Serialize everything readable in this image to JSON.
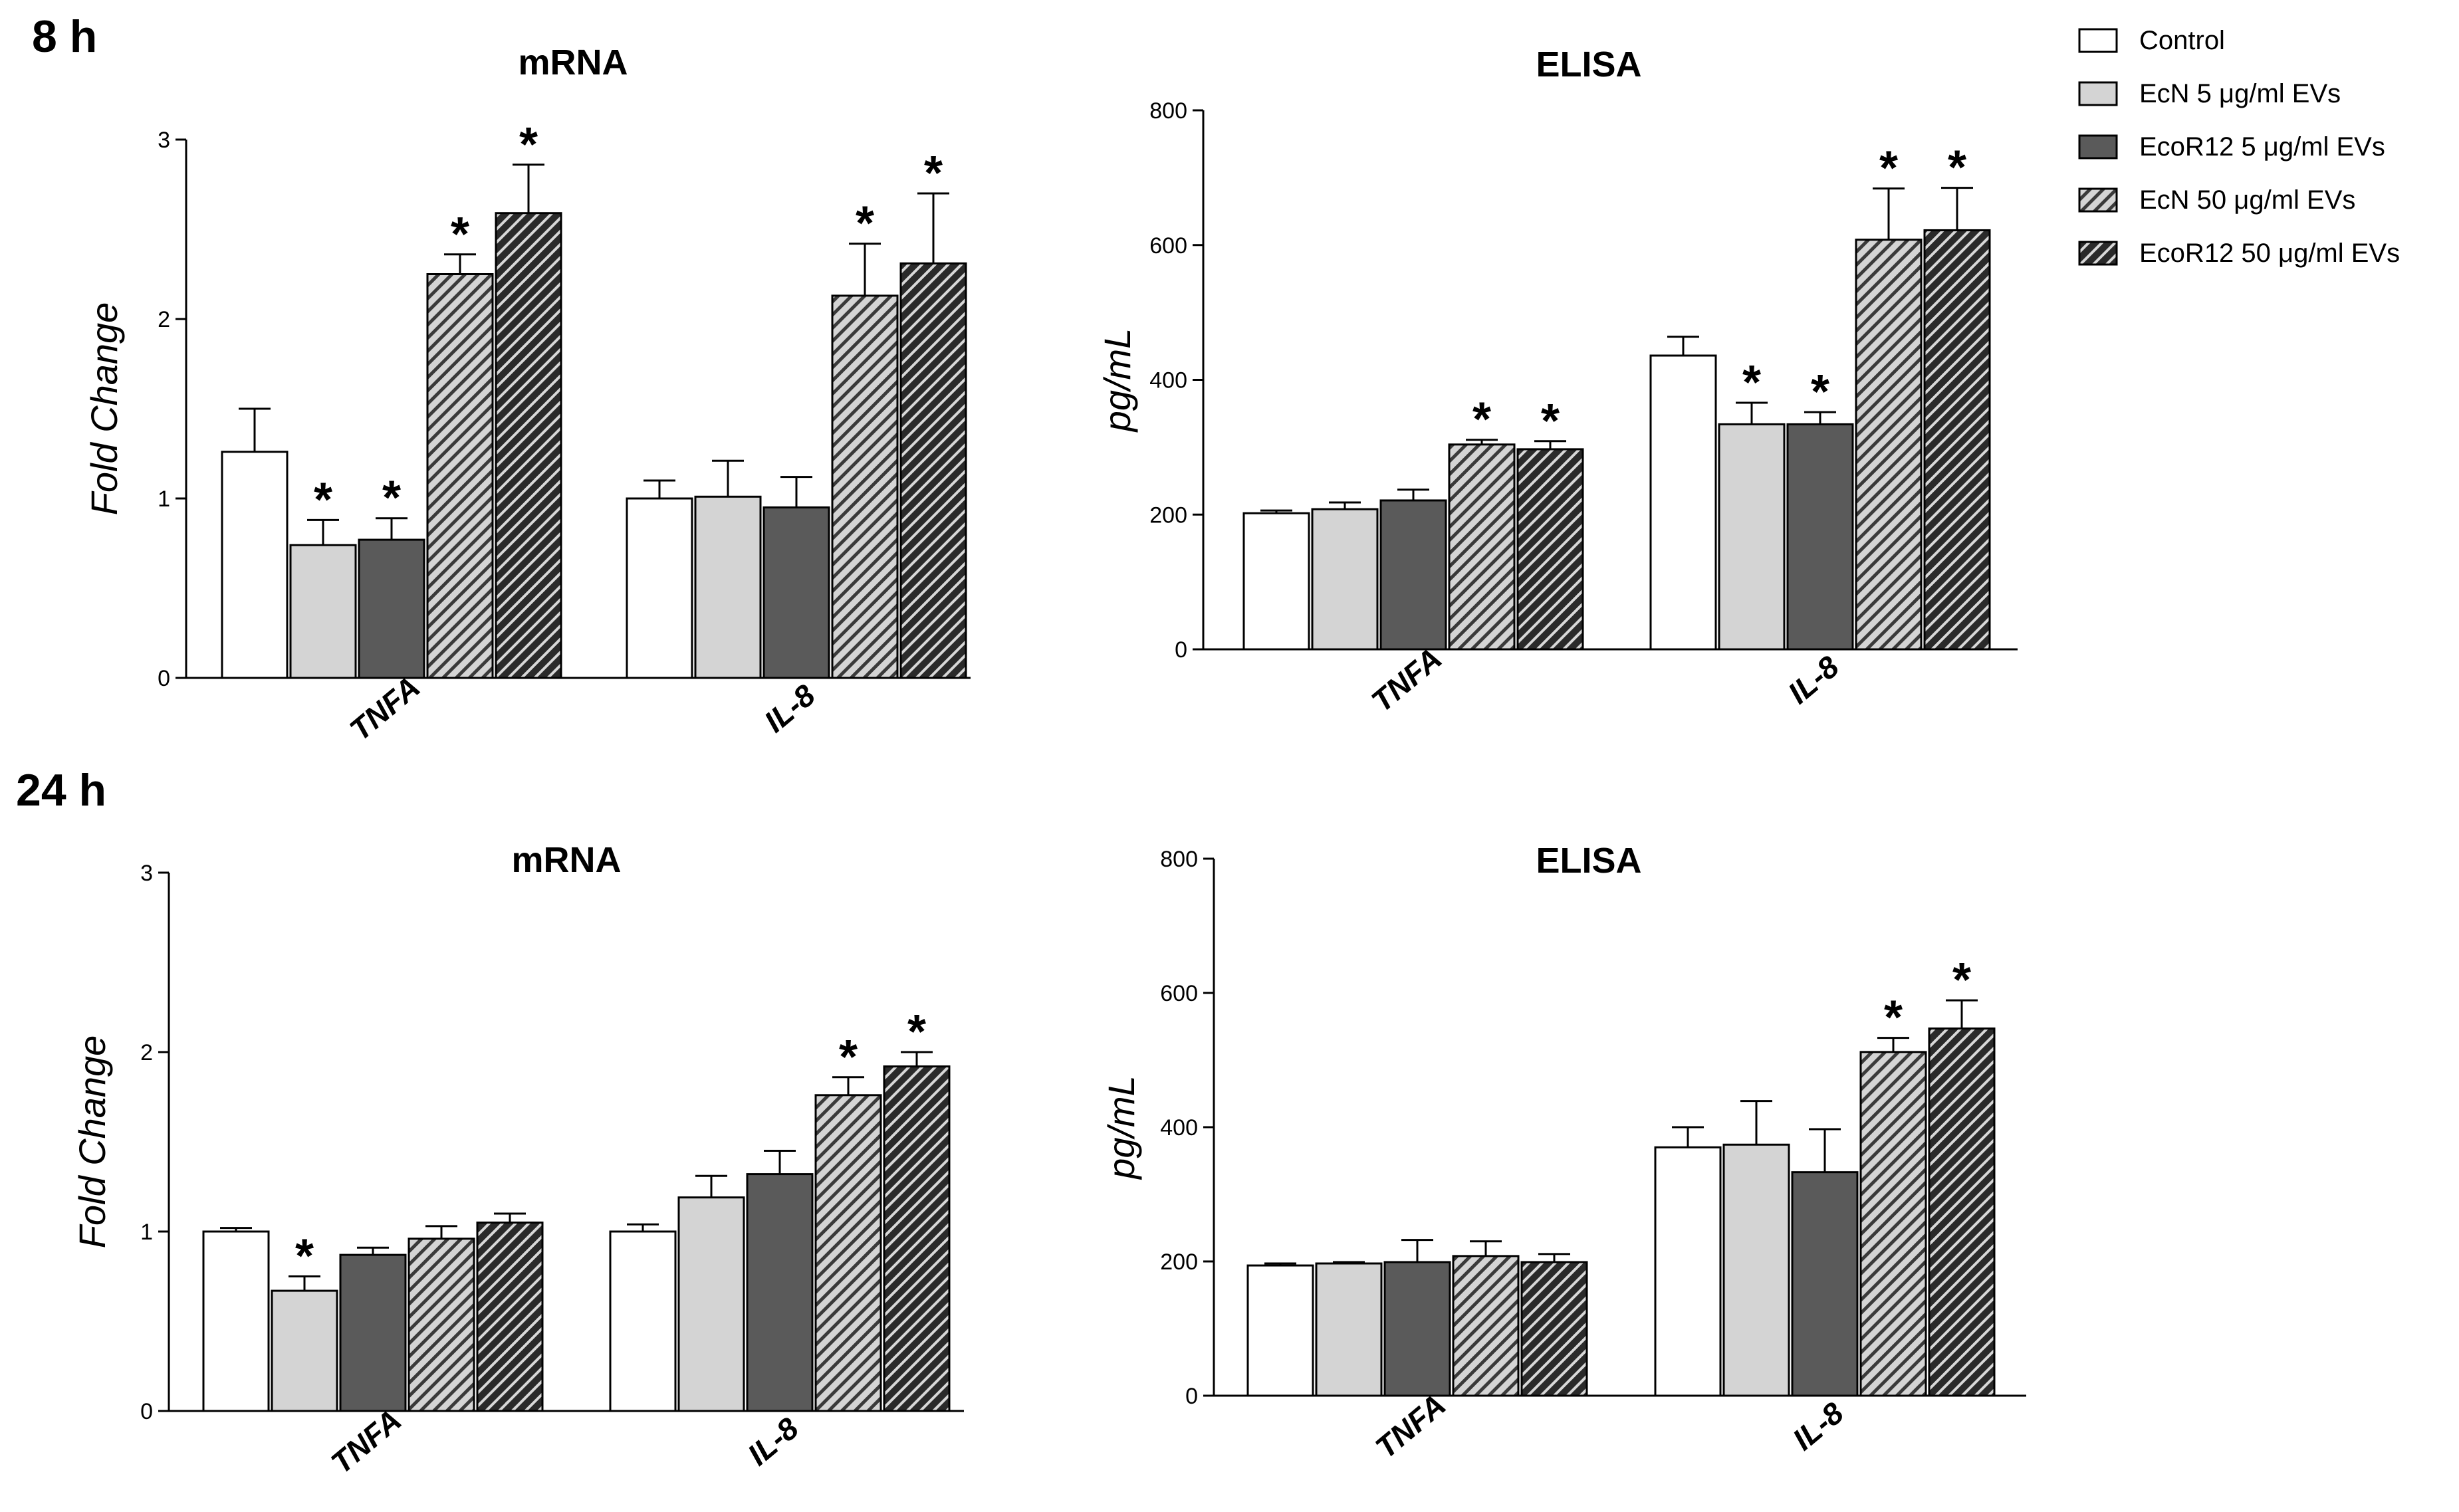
{
  "sections": [
    {
      "label": "8 h"
    },
    {
      "label": "24 h"
    }
  ],
  "legend": {
    "items": [
      {
        "label": "Control",
        "fill": "#ffffff",
        "hatch": false
      },
      {
        "label": "EcN 5 μg/ml EVs",
        "fill": "#d4d4d4",
        "hatch": false
      },
      {
        "label": "EcoR12 5 μg/ml EVs",
        "fill": "#5a5a5a",
        "hatch": false
      },
      {
        "label": "EcN 50 μg/ml EVs",
        "fill": "#d4d4d4",
        "hatch": true
      },
      {
        "label": "EcoR12 50 μg/ml EVs",
        "fill": "#3c3c3c",
        "hatch": true
      }
    ]
  },
  "colors": {
    "axis": "#000000",
    "bar_outline": "#000000",
    "hatch_stripe_light": "#3a3a3a",
    "hatch_stripe_dark": "#d8d8d8"
  },
  "chart_data": [
    {
      "id": "mrna-8h",
      "type": "bar",
      "section": "8 h",
      "title": "mRNA",
      "ylabel": "Fold Change",
      "xlabel": "",
      "ylim": [
        0,
        3
      ],
      "yticks": [
        0,
        1,
        2,
        3
      ],
      "categories": [
        "TNFA",
        "IL-8"
      ],
      "series": [
        {
          "name": "Control",
          "values": [
            1.26,
            1.0
          ],
          "errors": [
            0.24,
            0.1
          ],
          "significant": [
            false,
            false
          ]
        },
        {
          "name": "EcN 5 μg/ml EVs",
          "values": [
            0.74,
            1.01
          ],
          "errors": [
            0.14,
            0.2
          ],
          "significant": [
            true,
            false
          ]
        },
        {
          "name": "EcoR12 5 μg/ml EVs",
          "values": [
            0.77,
            0.95
          ],
          "errors": [
            0.12,
            0.17
          ],
          "significant": [
            true,
            false
          ]
        },
        {
          "name": "EcN 50 μg/ml EVs",
          "values": [
            2.25,
            2.13
          ],
          "errors": [
            0.11,
            0.29
          ],
          "significant": [
            true,
            true
          ]
        },
        {
          "name": "EcoR12 50 μg/ml EVs",
          "values": [
            2.59,
            2.31
          ],
          "errors": [
            0.27,
            0.39
          ],
          "significant": [
            true,
            true
          ]
        }
      ]
    },
    {
      "id": "elisa-8h",
      "type": "bar",
      "section": "8 h",
      "title": "ELISA",
      "ylabel": "pg/mL",
      "xlabel": "",
      "ylim": [
        0,
        800
      ],
      "yticks": [
        0,
        200,
        400,
        600,
        800
      ],
      "categories": [
        "TNFA",
        "IL-8"
      ],
      "series": [
        {
          "name": "Control",
          "values": [
            202,
            436
          ],
          "errors": [
            4,
            28
          ],
          "significant": [
            false,
            false
          ]
        },
        {
          "name": "EcN 5 μg/ml EVs",
          "values": [
            208,
            334
          ],
          "errors": [
            10,
            32
          ],
          "significant": [
            false,
            true
          ]
        },
        {
          "name": "EcoR12 5 μg/ml EVs",
          "values": [
            221,
            334
          ],
          "errors": [
            16,
            18
          ],
          "significant": [
            false,
            true
          ]
        },
        {
          "name": "EcN 50 μg/ml EVs",
          "values": [
            304,
            608
          ],
          "errors": [
            7,
            76
          ],
          "significant": [
            true,
            true
          ]
        },
        {
          "name": "EcoR12 50 μg/ml EVs",
          "values": [
            297,
            622
          ],
          "errors": [
            12,
            63
          ],
          "significant": [
            true,
            true
          ]
        }
      ]
    },
    {
      "id": "mrna-24h",
      "type": "bar",
      "section": "24 h",
      "title": "mRNA",
      "ylabel": "Fold Change",
      "xlabel": "",
      "ylim": [
        0,
        3
      ],
      "yticks": [
        0,
        1,
        2,
        3
      ],
      "categories": [
        "TNFA",
        "IL-8"
      ],
      "series": [
        {
          "name": "Control",
          "values": [
            1.0,
            1.0
          ],
          "errors": [
            0.02,
            0.04
          ],
          "significant": [
            false,
            false
          ]
        },
        {
          "name": "EcN 5 μg/ml EVs",
          "values": [
            0.67,
            1.19
          ],
          "errors": [
            0.08,
            0.12
          ],
          "significant": [
            true,
            false
          ]
        },
        {
          "name": "EcoR12 5 μg/ml EVs",
          "values": [
            0.87,
            1.32
          ],
          "errors": [
            0.04,
            0.13
          ],
          "significant": [
            false,
            false
          ]
        },
        {
          "name": "EcN 50 μg/ml EVs",
          "values": [
            0.96,
            1.76
          ],
          "errors": [
            0.07,
            0.1
          ],
          "significant": [
            false,
            true
          ]
        },
        {
          "name": "EcoR12 50 μg/ml EVs",
          "values": [
            1.05,
            1.92
          ],
          "errors": [
            0.05,
            0.08
          ],
          "significant": [
            false,
            true
          ]
        }
      ]
    },
    {
      "id": "elisa-24h",
      "type": "bar",
      "section": "24 h",
      "title": "ELISA",
      "ylabel": "pg/mL",
      "xlabel": "",
      "ylim": [
        0,
        800
      ],
      "yticks": [
        0,
        200,
        400,
        600,
        800
      ],
      "categories": [
        "TNFA",
        "IL-8"
      ],
      "series": [
        {
          "name": "Control",
          "values": [
            194,
            370
          ],
          "errors": [
            3,
            30
          ],
          "significant": [
            false,
            false
          ]
        },
        {
          "name": "EcN 5 μg/ml EVs",
          "values": [
            197,
            374
          ],
          "errors": [
            2,
            65
          ],
          "significant": [
            false,
            false
          ]
        },
        {
          "name": "EcoR12 5 μg/ml EVs",
          "values": [
            199,
            333
          ],
          "errors": [
            33,
            64
          ],
          "significant": [
            false,
            false
          ]
        },
        {
          "name": "EcN 50 μg/ml EVs",
          "values": [
            208,
            512
          ],
          "errors": [
            22,
            21
          ],
          "significant": [
            false,
            true
          ]
        },
        {
          "name": "EcoR12 50 μg/ml EVs",
          "values": [
            199,
            547
          ],
          "errors": [
            12,
            42
          ],
          "significant": [
            false,
            true
          ]
        }
      ]
    }
  ]
}
